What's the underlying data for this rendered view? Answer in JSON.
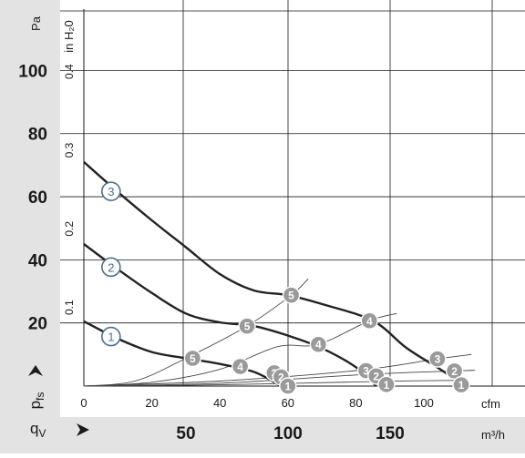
{
  "chart_data": {
    "type": "line",
    "left_axis": {
      "unit": "Pa",
      "ticks": [
        "20",
        "40",
        "60",
        "80",
        "100"
      ],
      "values": [
        20,
        40,
        60,
        80,
        100
      ],
      "ylim": [
        0,
        120
      ]
    },
    "inner_axis": {
      "unit": "in H₂0",
      "ticks": [
        "0.1",
        "0.2",
        "0.3",
        "0.4"
      ],
      "values": [
        0.1,
        0.2,
        0.3,
        0.4
      ]
    },
    "pressure_symbol": {
      "main": "p",
      "sub": "fs"
    },
    "flow_symbol": {
      "main": "q",
      "sub": "V"
    },
    "top_x_axis": {
      "unit": "cfm",
      "ticks": [
        "0",
        "20",
        "40",
        "60",
        "80",
        "100"
      ],
      "values": [
        0,
        20,
        40,
        60,
        80,
        100
      ],
      "xlim": [
        0,
        117
      ]
    },
    "bottom_x_axis": {
      "unit": "m³/h",
      "ticks": [
        "50",
        "100",
        "150"
      ],
      "values": [
        50,
        100,
        150
      ]
    },
    "grid": true,
    "series": [
      {
        "label": "1",
        "unit_x": "cfm",
        "unit_y": "Pa",
        "points": [
          [
            0,
            20.5
          ],
          [
            10,
            15
          ],
          [
            20,
            10.8
          ],
          [
            30,
            8.8
          ],
          [
            40,
            7
          ],
          [
            50,
            4.5
          ],
          [
            58,
            0
          ]
        ]
      },
      {
        "label": "2",
        "unit_x": "cfm",
        "unit_y": "Pa",
        "points": [
          [
            0,
            45
          ],
          [
            10,
            37
          ],
          [
            20,
            29.5
          ],
          [
            30,
            23
          ],
          [
            40,
            20.2
          ],
          [
            50,
            19
          ],
          [
            60,
            16
          ],
          [
            70,
            12
          ],
          [
            80,
            6
          ],
          [
            86,
            0
          ]
        ]
      },
      {
        "label": "3",
        "unit_x": "cfm",
        "unit_y": "Pa",
        "points": [
          [
            0,
            71
          ],
          [
            10,
            61.5
          ],
          [
            20,
            52.5
          ],
          [
            30,
            44
          ],
          [
            40,
            35.5
          ],
          [
            50,
            30.3
          ],
          [
            60,
            28.8
          ],
          [
            70,
            26
          ],
          [
            85,
            20.7
          ],
          [
            95,
            12
          ],
          [
            105,
            5.2
          ],
          [
            112,
            0
          ]
        ]
      }
    ],
    "system_curves": [
      {
        "label": "5",
        "points": [
          [
            0,
            0
          ],
          [
            15,
            1.6
          ],
          [
            30,
            8.8
          ],
          [
            48,
            19
          ],
          [
            61,
            28.8
          ],
          [
            66,
            34
          ]
        ]
      },
      {
        "label": "4",
        "points": [
          [
            0,
            0
          ],
          [
            20,
            1.2
          ],
          [
            40,
            5.3
          ],
          [
            57,
            12.5
          ],
          [
            69,
            13.2
          ],
          [
            84,
            20.7
          ],
          [
            92,
            23
          ]
        ]
      },
      {
        "label": "3",
        "points": [
          [
            0,
            0
          ],
          [
            40,
            1.6
          ],
          [
            80,
            4.9
          ],
          [
            104,
            8.6
          ],
          [
            114,
            10
          ]
        ]
      },
      {
        "label": "2",
        "points": [
          [
            0,
            0
          ],
          [
            40,
            0.9
          ],
          [
            83,
            3.7
          ],
          [
            109,
            4.8
          ],
          [
            115,
            5
          ]
        ]
      },
      {
        "label": "1",
        "points": [
          [
            0,
            0
          ],
          [
            40,
            0.4
          ],
          [
            88,
            1.5
          ],
          [
            112,
            1.8
          ]
        ]
      }
    ],
    "operating_points": [
      {
        "label": "1",
        "x": 8,
        "y": 15.7,
        "style": "outline"
      },
      {
        "label": "2",
        "x": 8,
        "y": 37.7,
        "style": "outline"
      },
      {
        "label": "3",
        "x": 8,
        "y": 61.7,
        "style": "outline"
      },
      {
        "label": "5",
        "x": 32,
        "y": 8.8,
        "style": "filled"
      },
      {
        "label": "4",
        "x": 46,
        "y": 6.2,
        "style": "filled"
      },
      {
        "label": "3",
        "x": 56,
        "y": 4.2,
        "style": "filled"
      },
      {
        "label": "2",
        "x": 58,
        "y": 2.9,
        "style": "filled"
      },
      {
        "label": "1",
        "x": 60,
        "y": 0,
        "style": "filled"
      },
      {
        "label": "5",
        "x": 48,
        "y": 19,
        "style": "filled"
      },
      {
        "label": "4",
        "x": 69,
        "y": 13.2,
        "style": "filled"
      },
      {
        "label": "3",
        "x": 83,
        "y": 4.9,
        "style": "filled"
      },
      {
        "label": "2",
        "x": 86,
        "y": 3.2,
        "style": "filled"
      },
      {
        "label": "1",
        "x": 89,
        "y": 0.5,
        "style": "filled"
      },
      {
        "label": "5",
        "x": 61,
        "y": 28.8,
        "style": "filled"
      },
      {
        "label": "4",
        "x": 84,
        "y": 20.7,
        "style": "filled"
      },
      {
        "label": "3",
        "x": 104,
        "y": 8.6,
        "style": "filled"
      },
      {
        "label": "2",
        "x": 109,
        "y": 4.8,
        "style": "filled"
      },
      {
        "label": "1",
        "x": 111,
        "y": 0.4,
        "style": "filled"
      }
    ]
  },
  "colors": {
    "panel": "#e3e3e3",
    "plot_bg": "#ffffff",
    "grid": "#1a1a1a",
    "curve": "#222222",
    "system_curve": "#444444",
    "marker_fill": "#9a9a9a",
    "outline_marker_stroke": "#4d6f8f",
    "text": "#1a1a1a"
  }
}
